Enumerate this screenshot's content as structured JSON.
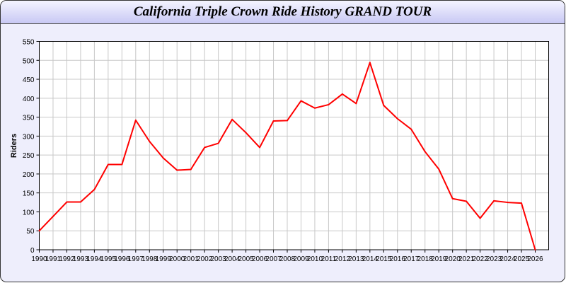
{
  "chart_data": {
    "type": "line",
    "title": "California Triple Crown Ride History GRAND TOUR",
    "xlabel": "",
    "ylabel": "Riders",
    "xlim": [
      1990,
      2027
    ],
    "ylim": [
      0,
      550
    ],
    "grid": true,
    "line_color": "#ff0000",
    "yticks": [
      0,
      50,
      100,
      150,
      200,
      250,
      300,
      350,
      400,
      450,
      500,
      550
    ],
    "x": [
      1990,
      1991,
      1992,
      1993,
      1994,
      1995,
      1996,
      1997,
      1998,
      1999,
      2000,
      2001,
      2002,
      2003,
      2004,
      2005,
      2006,
      2007,
      2008,
      2009,
      2010,
      2011,
      2012,
      2013,
      2014,
      2015,
      2016,
      2017,
      2018,
      2019,
      2020,
      2021,
      2022,
      2023,
      2024,
      2025,
      2026
    ],
    "series": [
      {
        "values": [
          50,
          88,
          126,
          126,
          159,
          225,
          225,
          342,
          286,
          242,
          210,
          212,
          270,
          281,
          344,
          309,
          270,
          340,
          341,
          393,
          374,
          383,
          411,
          386,
          494,
          381,
          346,
          318,
          259,
          213,
          135,
          128,
          83,
          129,
          125,
          123,
          0
        ]
      }
    ]
  }
}
